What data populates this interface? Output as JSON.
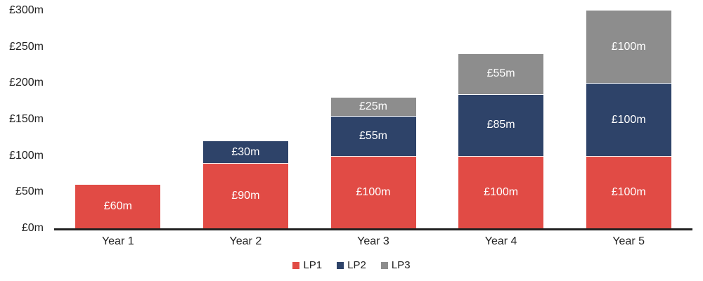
{
  "chart_data": {
    "type": "bar",
    "stacked": true,
    "title": "",
    "xlabel": "",
    "ylabel": "",
    "grid": false,
    "legend_position": "bottom",
    "categories": [
      "Year 1",
      "Year 2",
      "Year 3",
      "Year 4",
      "Year 5"
    ],
    "series": [
      {
        "name": "LP1",
        "color": "#E14B45",
        "values": [
          60,
          90,
          100,
          100,
          100
        ],
        "labels": [
          "£60m",
          "£90m",
          "£100m",
          "£100m",
          "£100m"
        ]
      },
      {
        "name": "LP2",
        "color": "#2E4369",
        "values": [
          0,
          30,
          55,
          85,
          100
        ],
        "labels": [
          "",
          "£30m",
          "£55m",
          "£85m",
          "£100m"
        ]
      },
      {
        "name": "LP3",
        "color": "#8D8D8D",
        "values": [
          0,
          0,
          25,
          55,
          100
        ],
        "labels": [
          "",
          "",
          "£25m",
          "£55m",
          "£100m"
        ]
      }
    ],
    "totals": [
      60,
      120,
      180,
      240,
      300
    ],
    "ylim": [
      0,
      300
    ],
    "y_tick_step": 50,
    "y_ticks": [
      "£0m",
      "£50m",
      "£100m",
      "£150m",
      "£200m",
      "£250m",
      "£300m"
    ],
    "unit_prefix": "£",
    "unit_suffix": "m"
  },
  "colors": {
    "background": "#FFFFFF",
    "axis_line": "#212121",
    "tick_text": "#212121",
    "bar_label_text": "#FFFFFF",
    "segment_separator": "#FFFFFF"
  },
  "legend": {
    "items": [
      {
        "label": "LP1",
        "color": "#E14B45"
      },
      {
        "label": "LP2",
        "color": "#2E4369"
      },
      {
        "label": "LP3",
        "color": "#8D8D8D"
      }
    ]
  }
}
